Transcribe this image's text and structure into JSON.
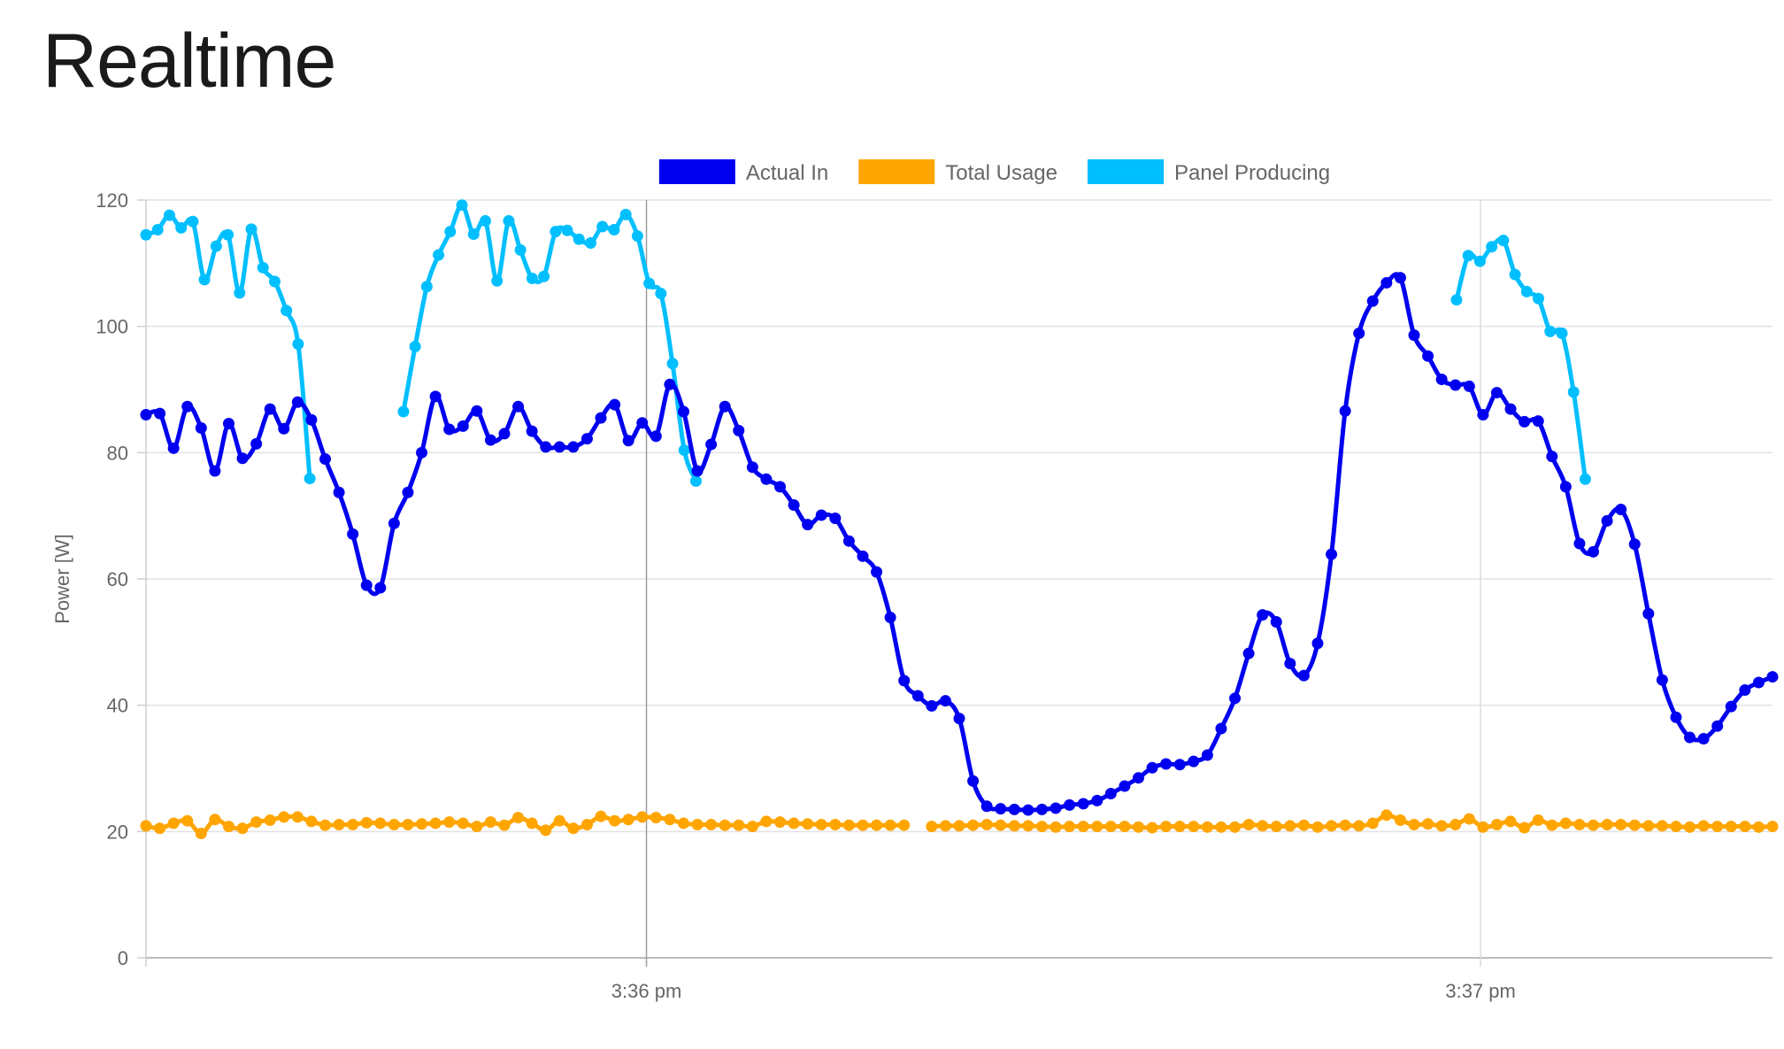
{
  "title": "Realtime",
  "chart_data": {
    "type": "line",
    "ylabel": "Power [W]",
    "ylim": [
      0,
      120
    ],
    "yticks": [
      "0",
      "20",
      "40",
      "60",
      "80",
      "100",
      "120"
    ],
    "xlim": [
      0,
      1.95
    ],
    "xticks": [
      {
        "x": 0.6,
        "label": "3:36 pm"
      },
      {
        "x": 1.6,
        "label": "3:37 pm"
      }
    ],
    "legend": "top-center",
    "grid": true,
    "series": [
      {
        "name": "Panel Producing",
        "color": "#00BFFF",
        "values": [
          114.5,
          115.3,
          117.6,
          115.6,
          116.6,
          107.4,
          112.7,
          114.5,
          105.3,
          115.4,
          109.3,
          107.1,
          102.5,
          97.2,
          75.9,
          null,
          null,
          null,
          null,
          null,
          null,
          null,
          86.5,
          96.8,
          106.3,
          111.3,
          115.0,
          119.2,
          114.6,
          116.7,
          107.2,
          116.7,
          112.1,
          107.6,
          107.9,
          115.0,
          115.2,
          113.8,
          113.2,
          115.8,
          115.3,
          117.7,
          114.3,
          106.8,
          105.2,
          94.1,
          80.4,
          75.5,
          null,
          null,
          null,
          null,
          null,
          null,
          null,
          null,
          null,
          null,
          null,
          null,
          null,
          null,
          null,
          null,
          null,
          null,
          null,
          null,
          null,
          null,
          null,
          null,
          null,
          null,
          null,
          null,
          null,
          null,
          null,
          null,
          null,
          null,
          null,
          null,
          null,
          null,
          null,
          null,
          null,
          null,
          null,
          null,
          null,
          null,
          null,
          null,
          null,
          null,
          null,
          null,
          null,
          null,
          null,
          null,
          null,
          null,
          null,
          null,
          null,
          null,
          null,
          null,
          104.2,
          111.2,
          110.3,
          112.6,
          113.6,
          108.2,
          105.5,
          104.4,
          99.2,
          98.9,
          89.6,
          75.8,
          null,
          null,
          null,
          null,
          null,
          null,
          null,
          null,
          null,
          null,
          null,
          null,
          null,
          null,
          null,
          null
        ]
      },
      {
        "name": "Actual In",
        "color": "#0000F0",
        "values": [
          86.0,
          86.2,
          80.7,
          87.3,
          83.9,
          77.1,
          84.6,
          79.1,
          81.4,
          86.9,
          83.8,
          88.0,
          85.2,
          79.0,
          73.7,
          67.1,
          59.0,
          58.6,
          68.8,
          73.7,
          80.0,
          88.9,
          83.7,
          84.2,
          86.6,
          82.0,
          83.0,
          87.3,
          83.4,
          80.9,
          80.9,
          80.9,
          82.2,
          85.5,
          87.6,
          81.9,
          84.7,
          82.6,
          90.8,
          86.5,
          77.1,
          81.3,
          87.3,
          83.5,
          77.7,
          75.8,
          74.6,
          71.7,
          68.6,
          70.1,
          69.6,
          66.0,
          63.6,
          61.1,
          53.9,
          43.9,
          41.5,
          39.9,
          40.7,
          37.9,
          28.0,
          24.0,
          23.6,
          23.5,
          23.4,
          23.5,
          23.7,
          24.2,
          24.4,
          24.9,
          26.0,
          27.2,
          28.5,
          30.1,
          30.7,
          30.6,
          31.1,
          32.1,
          36.3,
          41.1,
          48.2,
          54.3,
          53.2,
          46.6,
          44.7,
          49.8,
          63.9,
          86.6,
          98.9,
          104.0,
          106.9,
          107.7,
          98.6,
          95.3,
          91.6,
          90.7,
          90.5,
          86.0,
          89.5,
          86.9,
          84.9,
          85.0,
          79.4,
          74.6,
          65.6,
          64.3,
          69.2,
          71.0,
          65.5,
          54.5,
          44.0,
          38.1,
          34.9,
          34.7,
          36.7,
          39.8,
          42.4,
          43.6,
          44.5
        ]
      },
      {
        "name": "Total Usage",
        "color": "#FFA500",
        "values": [
          20.9,
          20.5,
          21.3,
          21.7,
          19.7,
          21.9,
          20.8,
          20.5,
          21.5,
          21.8,
          22.3,
          22.3,
          21.6,
          21.0,
          21.1,
          21.1,
          21.4,
          21.3,
          21.1,
          21.1,
          21.2,
          21.3,
          21.5,
          21.3,
          20.8,
          21.5,
          21.0,
          22.2,
          21.3,
          20.2,
          21.7,
          20.5,
          21.1,
          22.4,
          21.7,
          21.9,
          22.3,
          22.2,
          21.9,
          21.3,
          21.1,
          21.1,
          21.0,
          21.0,
          20.8,
          21.6,
          21.5,
          21.3,
          21.2,
          21.1,
          21.1,
          21.0,
          21.0,
          21.0,
          21.0,
          21.0,
          null,
          20.8,
          20.9,
          20.9,
          21.0,
          21.1,
          21.0,
          20.9,
          20.9,
          20.8,
          20.7,
          20.8,
          20.8,
          20.8,
          20.8,
          20.8,
          20.7,
          20.6,
          20.8,
          20.8,
          20.8,
          20.7,
          20.7,
          20.7,
          21.1,
          20.9,
          20.8,
          20.9,
          21.0,
          20.7,
          20.9,
          21.0,
          20.9,
          21.3,
          22.6,
          21.8,
          21.1,
          21.2,
          20.9,
          21.1,
          22.0,
          20.7,
          21.1,
          21.6,
          20.6,
          21.8,
          21.0,
          21.3,
          21.1,
          21.0,
          21.1,
          21.1,
          21.0,
          20.9,
          20.9,
          20.8,
          20.7,
          20.9,
          20.8,
          20.8,
          20.8,
          20.7,
          20.8
        ]
      }
    ],
    "legend_order": [
      "Actual In",
      "Total Usage",
      "Panel Producing"
    ]
  }
}
